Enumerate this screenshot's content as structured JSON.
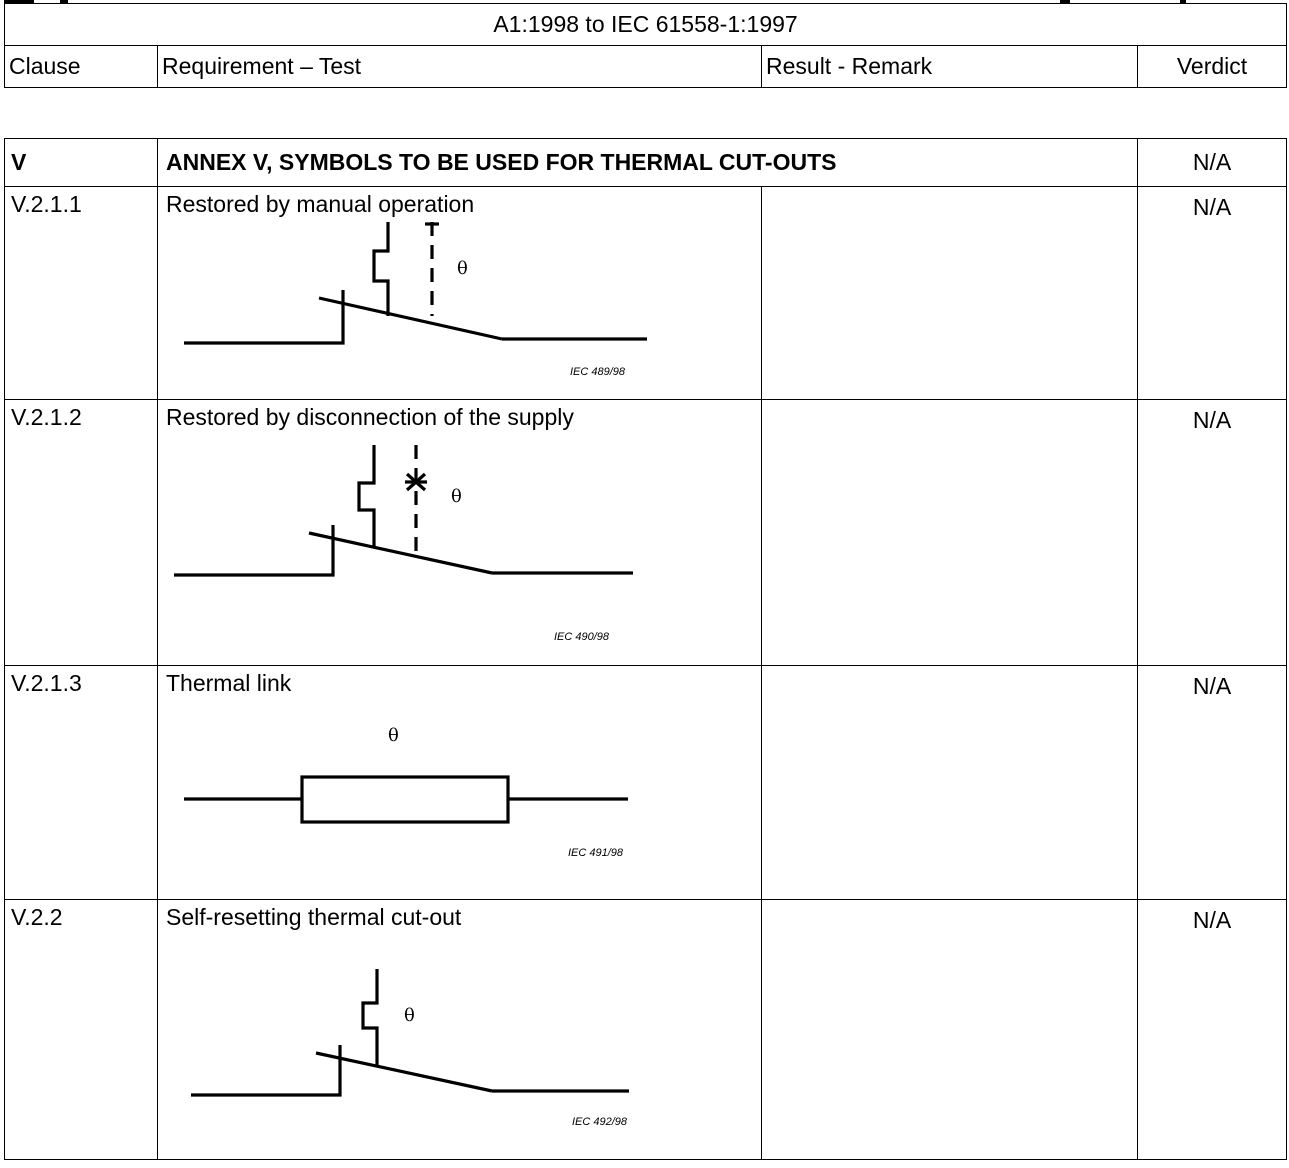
{
  "header": {
    "standard": "A1:1998 to IEC 61558-1:1997",
    "columns": [
      "Clause",
      "Requirement – Test",
      "Result - Remark",
      "Verdict"
    ]
  },
  "section": {
    "clause": "V",
    "title": "ANNEX V, SYMBOLS TO BE USED FOR THERMAL CUT-OUTS",
    "verdict": "N/A"
  },
  "rows": [
    {
      "clause": "V.2.1.1",
      "requirement": "Restored by manual operation",
      "figure_ref": "IEC 489/98",
      "symbol": "θ",
      "remark": "",
      "verdict": "N/A"
    },
    {
      "clause": "V.2.1.2",
      "requirement": "Restored by disconnection of the supply",
      "figure_ref": "IEC 490/98",
      "symbol": "θ",
      "remark": "",
      "verdict": "N/A"
    },
    {
      "clause": "V.2.1.3",
      "requirement": "Thermal link",
      "figure_ref": "IEC 491/98",
      "symbol": "θ",
      "remark": "",
      "verdict": "N/A"
    },
    {
      "clause": "V.2.2",
      "requirement": "Self-resetting thermal cut-out",
      "figure_ref": "IEC 492/98",
      "symbol": "θ",
      "remark": "",
      "verdict": "N/A"
    }
  ]
}
